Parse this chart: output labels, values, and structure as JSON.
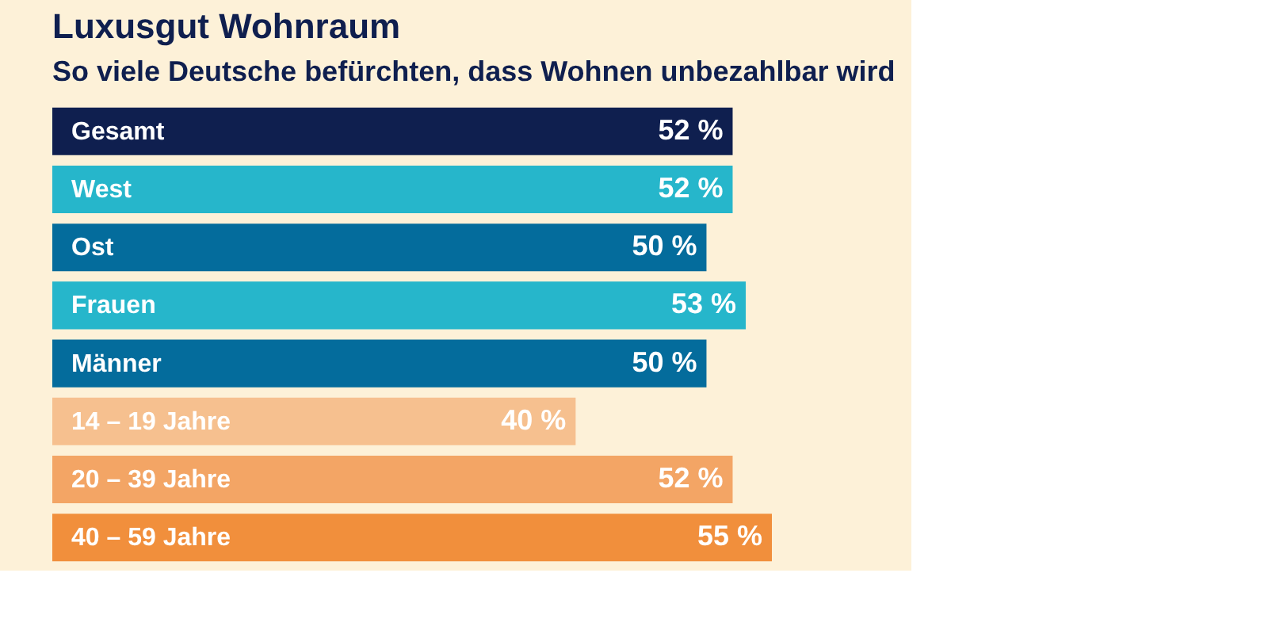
{
  "chart_data": {
    "type": "bar",
    "orientation": "horizontal",
    "title": "Luxusgut Wohnraum",
    "subtitle": "So viele Deutsche befürchten, dass Wohnen unbezahlbar wird",
    "categories": [
      "Gesamt",
      "West",
      "Ost",
      "Frauen",
      "Männer",
      "14 – 19 Jahre",
      "20 – 39 Jahre",
      "40 – 59 Jahre"
    ],
    "values": [
      52,
      52,
      50,
      53,
      50,
      40,
      52,
      55
    ],
    "value_labels": [
      "52 %",
      "52 %",
      "50 %",
      "53 %",
      "50 %",
      "40 %",
      "52 %",
      "55 %"
    ],
    "colors": [
      "#0f1f4f",
      "#26b6cb",
      "#046c9c",
      "#26b6cb",
      "#046c9c",
      "#f6c08f",
      "#f3a565",
      "#f18f3c"
    ]
  }
}
